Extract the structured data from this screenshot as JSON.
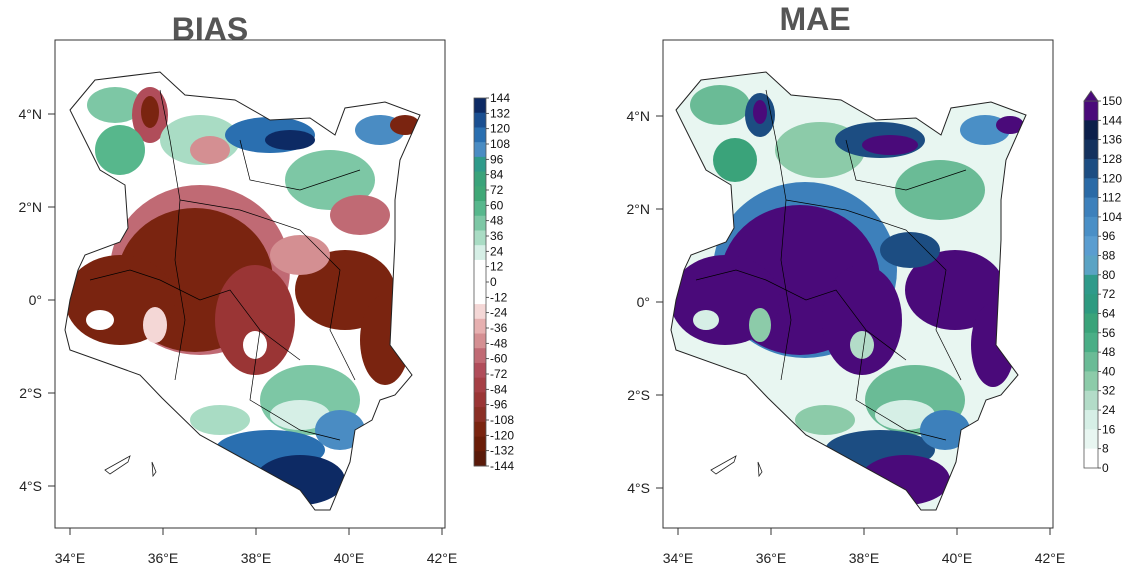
{
  "panels": [
    {
      "title": "BIAS",
      "x_ticks": [
        "34°E",
        "36°E",
        "38°E",
        "40°E",
        "42°E"
      ],
      "y_ticks": [
        "4°N",
        "2°N",
        "0°",
        "2°S",
        "4°S"
      ],
      "colorbar": {
        "labels": [
          "144",
          "132",
          "120",
          "108",
          "96",
          "84",
          "72",
          "60",
          "48",
          "36",
          "24",
          "12",
          "0",
          "-12",
          "-24",
          "-36",
          "-48",
          "-60",
          "-72",
          "-84",
          "-96",
          "-108",
          "-120",
          "-132",
          "-144"
        ],
        "colors": [
          "#0d2a64",
          "#1a4f91",
          "#2a6fb0",
          "#4a8cc3",
          "#2f9a8a",
          "#3aa37a",
          "#3fa776",
          "#57b78c",
          "#7dc7a5",
          "#a9dcc4",
          "#d6efe6",
          "#ffffff",
          "#ffffff",
          "#ffffff",
          "#f4d7d6",
          "#e6b0b0",
          "#d48f92",
          "#c06a74",
          "#b04d5a",
          "#a53f45",
          "#9a3535",
          "#8a2f25",
          "#7a2410",
          "#6a1d08",
          "#5a1a0a"
        ]
      }
    },
    {
      "title": "MAE",
      "x_ticks": [
        "34°E",
        "36°E",
        "38°E",
        "40°E",
        "42°E"
      ],
      "y_ticks": [
        "4°N",
        "2°N",
        "0°",
        "2°S",
        "4°S"
      ],
      "colorbar": {
        "labels": [
          "150",
          "144",
          "136",
          "128",
          "120",
          "112",
          "104",
          "96",
          "88",
          "80",
          "72",
          "64",
          "56",
          "48",
          "40",
          "32",
          "24",
          "16",
          "8",
          "0"
        ],
        "colors": [
          "#4a0a7a",
          "#0c1f4a",
          "#14325e",
          "#1c4d82",
          "#2a6aa6",
          "#3d80bb",
          "#4a8fc6",
          "#5a9dd0",
          "#5aa3c4",
          "#2f9a8a",
          "#2e9a80",
          "#3aa37a",
          "#4aae86",
          "#6abb96",
          "#8ccba9",
          "#b3dcc8",
          "#d6efe6",
          "#e8f6f1",
          "#ffffff"
        ]
      }
    }
  ]
}
